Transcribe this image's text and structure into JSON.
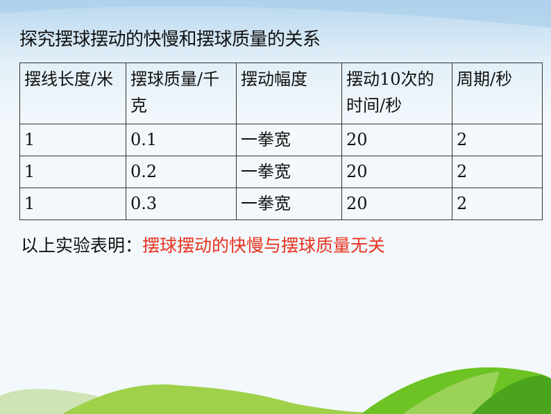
{
  "title": "探究摆球摆动的快慢和摆球质量的关系",
  "table": {
    "headers": [
      "摆线长度/米",
      "摆球质量/千克",
      "摆动幅度",
      "摆动10次的时间/秒",
      "周期/秒"
    ],
    "rows": [
      [
        "1",
        "0.1",
        "一拳宽",
        "20",
        "2"
      ],
      [
        "1",
        "0.2",
        "一拳宽",
        "20",
        "2"
      ],
      [
        "1",
        "0.3",
        "一拳宽",
        "20",
        "2"
      ]
    ]
  },
  "conclusion": {
    "prefix": "以上实验表明：",
    "highlight": "摆球摆动的快慢与摆球质量无关",
    "highlight_color": "#e8321e"
  }
}
